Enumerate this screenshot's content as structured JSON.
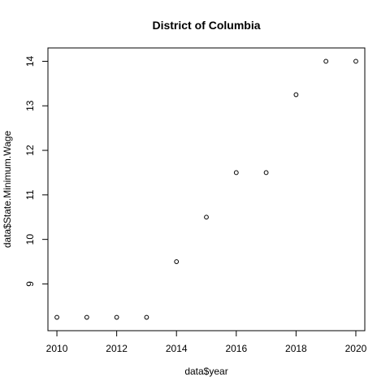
{
  "chart_data": {
    "type": "scatter",
    "title": "District of Columbia",
    "xlabel": "data$year",
    "ylabel": "data$State.Minimum.Wage",
    "xlim": [
      2009.7,
      2020.3
    ],
    "ylim": [
      7.95,
      14.3
    ],
    "x_ticks": [
      2010,
      2012,
      2014,
      2016,
      2018,
      2020
    ],
    "y_ticks": [
      9,
      10,
      11,
      12,
      13,
      14
    ],
    "grid": false,
    "legend": "none",
    "x": [
      2010,
      2011,
      2012,
      2013,
      2014,
      2015,
      2016,
      2017,
      2018,
      2019,
      2020
    ],
    "y": [
      8.25,
      8.25,
      8.25,
      8.25,
      9.5,
      10.5,
      11.5,
      11.5,
      13.25,
      14.0,
      14.0
    ]
  }
}
